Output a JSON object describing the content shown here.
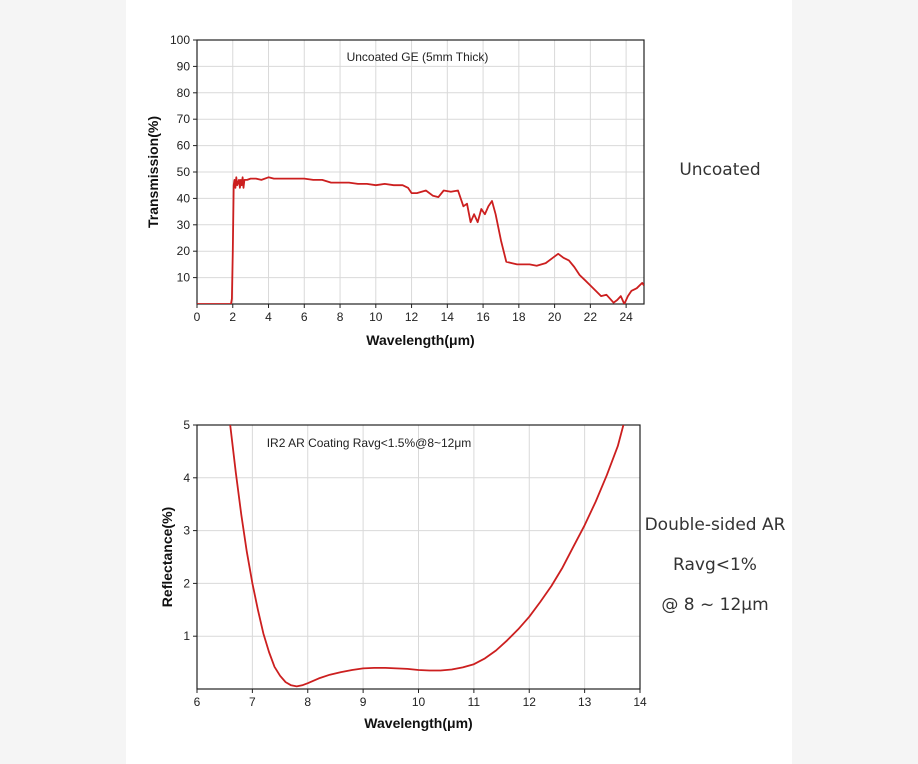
{
  "colors": {
    "curve": "#cc1f1f",
    "grid": "#d9d9d9",
    "axis": "#222222",
    "background": "#f5f5f5"
  },
  "side_labels": {
    "chart1": "Uncoated",
    "chart2_line1": "Double-sided AR",
    "chart2_line2": "Ravg<1%",
    "chart2_line3": "@ 8 ~ 12μm"
  },
  "chart_data": [
    {
      "type": "line",
      "title": "Uncoated GE (5mm Thick)",
      "xlabel": "Wavelength(μm)",
      "ylabel": "Transmission(%)",
      "xlim": [
        0,
        25
      ],
      "ylim": [
        0,
        100
      ],
      "xticks": [
        0,
        2,
        4,
        6,
        8,
        10,
        12,
        14,
        16,
        18,
        20,
        22,
        24
      ],
      "yticks": [
        10,
        20,
        30,
        40,
        50,
        60,
        70,
        80,
        90,
        100
      ],
      "grid": true,
      "series": [
        {
          "x": [
            0,
            1.9,
            1.95,
            2.0,
            2.05,
            2.1,
            2.15,
            2.2,
            2.25,
            2.3,
            2.35,
            2.4,
            2.45,
            2.5,
            2.55,
            2.6,
            2.65,
            2.7,
            2.8,
            3.0,
            3.3,
            3.6,
            4.0,
            4.3,
            4.6,
            5.0,
            5.5,
            6.0,
            6.5,
            7.0,
            7.5,
            8.0,
            8.5,
            9.0,
            9.5,
            10.0,
            10.5,
            11.0,
            11.5,
            11.8,
            12.0,
            12.3,
            12.8,
            13.2,
            13.5,
            13.8,
            14.2,
            14.6,
            14.9,
            15.1,
            15.3,
            15.5,
            15.7,
            15.9,
            16.1,
            16.3,
            16.5,
            16.7,
            17.0,
            17.3,
            17.6,
            17.9,
            18.2,
            18.6,
            19.0,
            19.5,
            19.9,
            20.2,
            20.5,
            20.8,
            21.1,
            21.4,
            21.7,
            22.0,
            22.3,
            22.6,
            22.9,
            23.1,
            23.3,
            23.5,
            23.7,
            23.9,
            24.1,
            24.3,
            24.6,
            24.9,
            25.0
          ],
          "y": [
            0,
            0,
            2,
            20,
            45,
            47,
            44,
            48,
            45,
            46,
            47,
            44,
            47,
            45,
            48,
            44,
            47,
            47,
            47,
            47.5,
            47.5,
            47,
            48,
            47.5,
            47.5,
            47.5,
            47.5,
            47.5,
            47,
            47,
            46,
            46,
            46,
            45.5,
            45.5,
            45,
            45.5,
            45,
            45,
            44,
            42,
            42,
            43,
            41,
            40.5,
            43,
            42.5,
            43,
            37,
            38,
            31,
            34,
            31,
            36,
            34,
            37,
            39,
            34,
            24,
            16,
            15.5,
            15,
            15,
            15,
            14.5,
            15.5,
            17.5,
            19,
            17.5,
            16.5,
            14,
            11,
            9,
            7,
            5,
            3,
            3.5,
            2,
            0.5,
            1.5,
            3,
            0,
            3,
            5,
            6,
            8,
            7
          ]
        }
      ]
    },
    {
      "type": "line",
      "title": "IR2 AR Coating Ravg<1.5%@8~12μm",
      "xlabel": "Wavelength(μm)",
      "ylabel": "Reflectance(%)",
      "xlim": [
        6,
        14
      ],
      "ylim": [
        0,
        5
      ],
      "xticks": [
        6,
        7,
        8,
        9,
        10,
        11,
        12,
        13,
        14
      ],
      "yticks": [
        1,
        2,
        3,
        4,
        5
      ],
      "grid": true,
      "series": [
        {
          "x": [
            6.6,
            6.7,
            6.8,
            6.9,
            7.0,
            7.1,
            7.2,
            7.3,
            7.4,
            7.5,
            7.6,
            7.7,
            7.8,
            7.9,
            8.0,
            8.2,
            8.4,
            8.6,
            8.8,
            9.0,
            9.2,
            9.4,
            9.6,
            9.8,
            10.0,
            10.2,
            10.4,
            10.6,
            10.8,
            11.0,
            11.2,
            11.4,
            11.6,
            11.8,
            12.0,
            12.2,
            12.4,
            12.6,
            12.8,
            13.0,
            13.2,
            13.4,
            13.6,
            13.7
          ],
          "y": [
            5.0,
            4.1,
            3.3,
            2.6,
            2.0,
            1.5,
            1.05,
            0.7,
            0.42,
            0.25,
            0.13,
            0.07,
            0.05,
            0.07,
            0.11,
            0.2,
            0.27,
            0.32,
            0.36,
            0.39,
            0.4,
            0.4,
            0.39,
            0.38,
            0.36,
            0.35,
            0.35,
            0.37,
            0.41,
            0.47,
            0.58,
            0.73,
            0.92,
            1.13,
            1.37,
            1.65,
            1.95,
            2.3,
            2.7,
            3.1,
            3.55,
            4.05,
            4.6,
            5.0
          ]
        }
      ]
    }
  ]
}
